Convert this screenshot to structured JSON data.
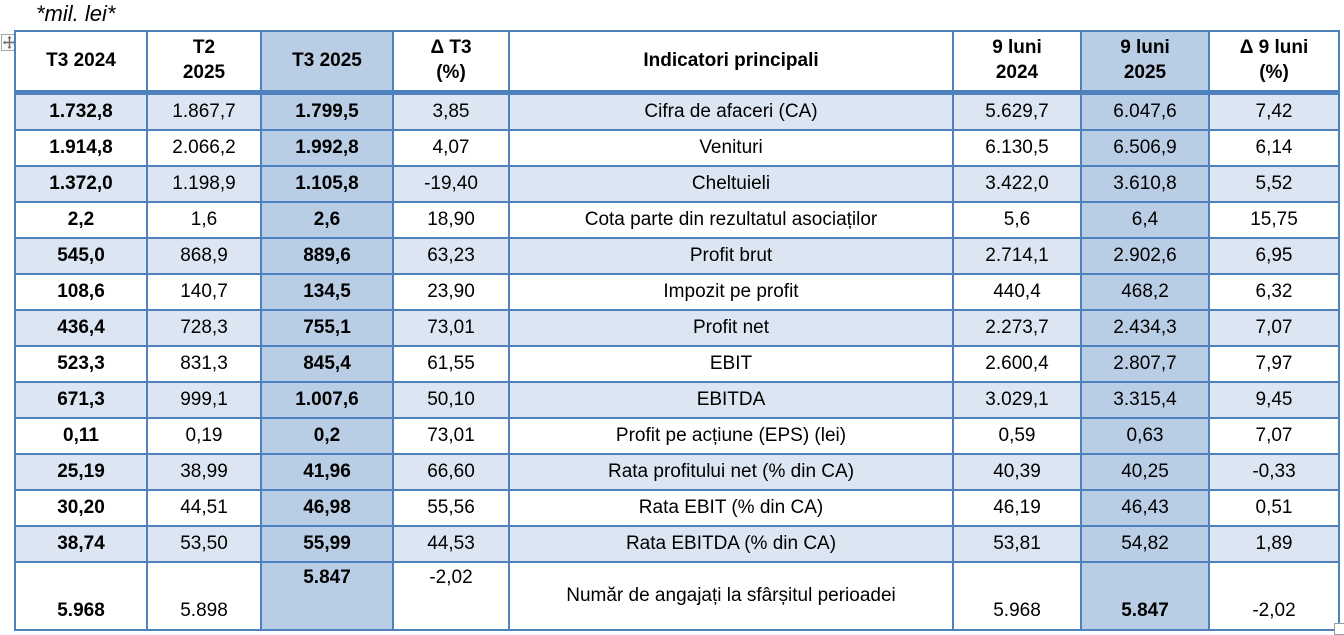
{
  "note": "*mil. lei*",
  "colors": {
    "border": "#4F81BD",
    "stripe": "#DCE6F2",
    "highlight_column": "#B9CDE5",
    "text": "#000000"
  },
  "icons": {
    "move_handle": "table-move-handle-icon",
    "resize_handle": "table-resize-handle-icon"
  },
  "table": {
    "headers": [
      "T3 2024",
      "T2\n2025",
      "T3 2025",
      "Δ T3\n(%)",
      "Indicatori principali",
      "9 luni\n2024",
      "9 luni\n2025",
      "Δ 9 luni\n(%)"
    ],
    "rows": [
      [
        "1.732,8",
        "1.867,7",
        "1.799,5",
        "3,85",
        "Cifra de afaceri (CA)",
        "5.629,7",
        "6.047,6",
        "7,42"
      ],
      [
        "1.914,8",
        "2.066,2",
        "1.992,8",
        "4,07",
        "Venituri",
        "6.130,5",
        "6.506,9",
        "6,14"
      ],
      [
        "1.372,0",
        "1.198,9",
        "1.105,8",
        "-19,40",
        "Cheltuieli",
        "3.422,0",
        "3.610,8",
        "5,52"
      ],
      [
        "2,2",
        "1,6",
        "2,6",
        "18,90",
        "Cota parte din rezultatul asociaților",
        "5,6",
        "6,4",
        "15,75"
      ],
      [
        "545,0",
        "868,9",
        "889,6",
        "63,23",
        "Profit brut",
        "2.714,1",
        "2.902,6",
        "6,95"
      ],
      [
        "108,6",
        "140,7",
        "134,5",
        "23,90",
        "Impozit pe profit",
        "440,4",
        "468,2",
        "6,32"
      ],
      [
        "436,4",
        "728,3",
        "755,1",
        "73,01",
        "Profit net",
        "2.273,7",
        "2.434,3",
        "7,07"
      ],
      [
        "523,3",
        "831,3",
        "845,4",
        "61,55",
        "EBIT",
        "2.600,4",
        "2.807,7",
        "7,97"
      ],
      [
        "671,3",
        "999,1",
        "1.007,6",
        "50,10",
        "EBITDA",
        "3.029,1",
        "3.315,4",
        "9,45"
      ],
      [
        "0,11",
        "0,19",
        "0,2",
        "73,01",
        "Profit pe acțiune (EPS) (lei)",
        "0,59",
        "0,63",
        "7,07"
      ],
      [
        "25,19",
        "38,99",
        "41,96",
        "66,60",
        "Rata profitului net (% din CA)",
        "40,39",
        "40,25",
        "-0,33"
      ],
      [
        "30,20",
        "44,51",
        "46,98",
        "55,56",
        "Rata EBIT (% din CA)",
        "46,19",
        "46,43",
        "0,51"
      ],
      [
        "38,74",
        "53,50",
        "55,99",
        "44,53",
        "Rata EBITDA (% din CA)",
        "53,81",
        "54,82",
        "1,89"
      ],
      [
        "5.968",
        "5.898",
        "5.847",
        "-2,02",
        "Număr de angajați la sfârșitul perioadei",
        "5.968",
        "5.847",
        "-2,02"
      ]
    ]
  }
}
